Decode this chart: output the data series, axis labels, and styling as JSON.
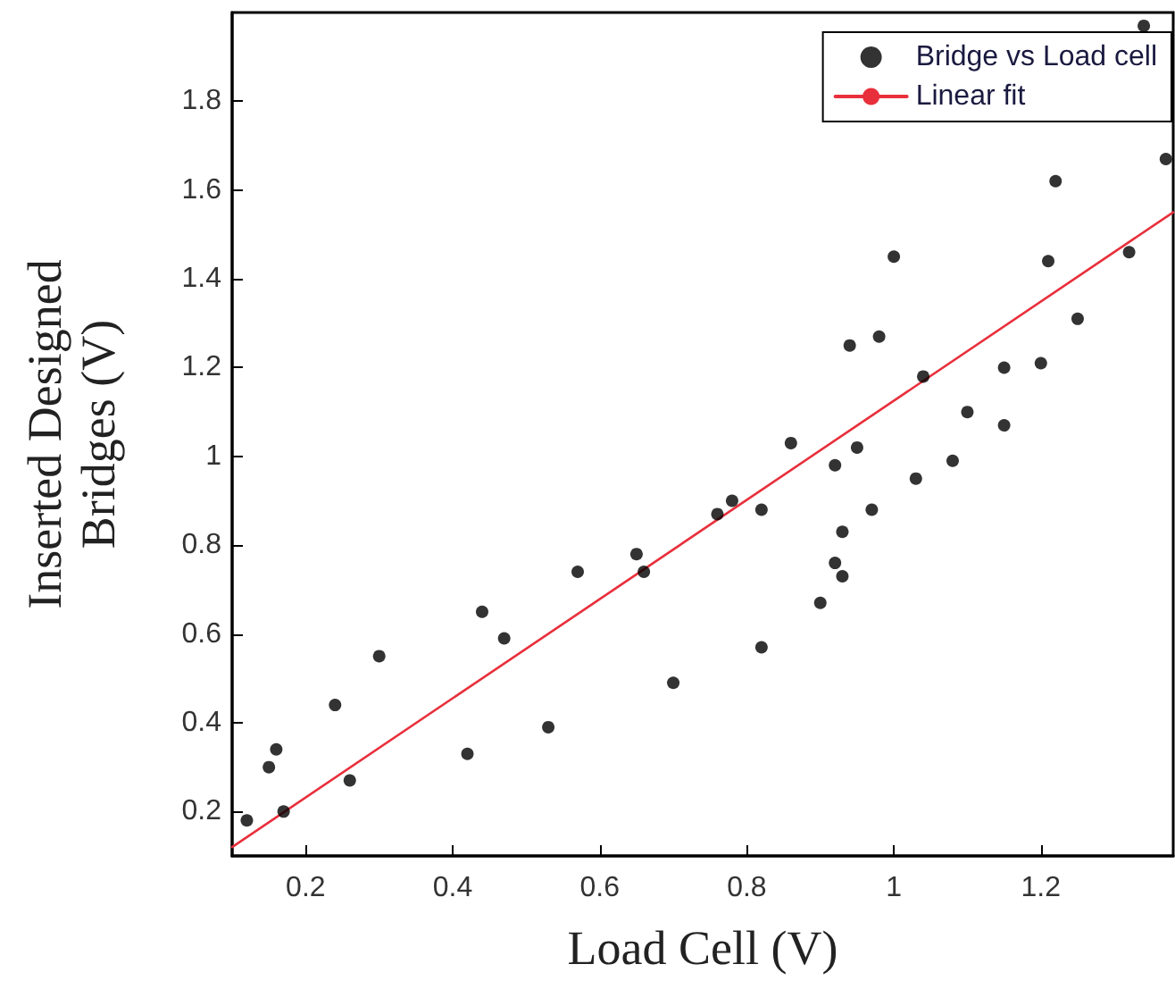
{
  "chart_data": {
    "type": "scatter",
    "xlabel": "Load Cell (V)",
    "ylabel": "Inserted Designed\nBridges (V)",
    "xlim": [
      0.1,
      1.38
    ],
    "xticks": [
      0.2,
      0.4,
      0.6,
      0.8,
      1,
      1.2
    ],
    "ylim": [
      0.1,
      2
    ],
    "yticks": [
      0.2,
      0.4,
      0.6,
      0.8,
      1,
      1.2,
      1.4,
      1.6,
      1.8
    ],
    "grid": false,
    "legend": "top right",
    "series": [
      {
        "name": "Bridge vs Load cell",
        "type": "scatter",
        "marker": "circle",
        "color": "#000000",
        "x": [
          0.12,
          0.15,
          0.16,
          0.17,
          0.24,
          0.26,
          0.3,
          0.42,
          0.44,
          0.47,
          0.53,
          0.57,
          0.65,
          0.66,
          0.7,
          0.76,
          0.78,
          0.82,
          0.82,
          0.9,
          0.92,
          0.93,
          0.93,
          0.97,
          0.86,
          0.92,
          0.95,
          0.94,
          0.98,
          1.0,
          1.03,
          1.04,
          1.08,
          1.1,
          1.15,
          1.15,
          1.2,
          1.21,
          1.22,
          1.25,
          1.32,
          1.34,
          1.37
        ],
        "values": [
          0.18,
          0.3,
          0.34,
          0.2,
          0.44,
          0.27,
          0.55,
          0.33,
          0.65,
          0.59,
          0.39,
          0.74,
          0.78,
          0.74,
          0.49,
          0.87,
          0.9,
          0.88,
          0.57,
          0.67,
          0.76,
          0.73,
          0.83,
          0.88,
          1.03,
          0.98,
          1.02,
          1.25,
          1.27,
          1.45,
          0.95,
          1.18,
          0.99,
          1.1,
          1.07,
          1.2,
          1.21,
          1.44,
          1.62,
          1.31,
          1.46,
          1.97,
          1.67
        ]
      },
      {
        "name": "Linear fit",
        "type": "line",
        "marker": "none",
        "line_style": "solid",
        "color": "#e8303c",
        "x": [
          0.1,
          1.38
        ],
        "values": [
          0.12,
          1.55
        ]
      }
    ]
  }
}
